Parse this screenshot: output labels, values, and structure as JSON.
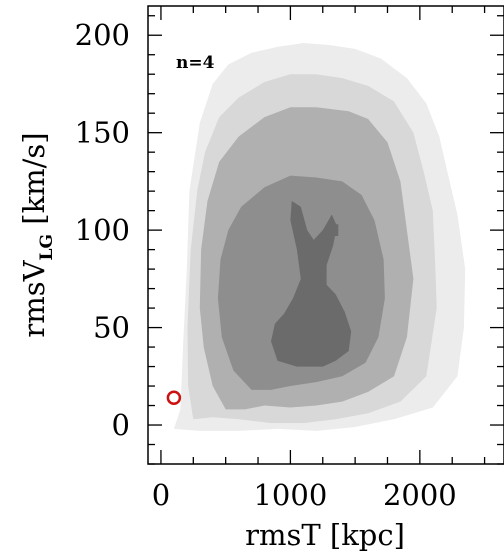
{
  "chart_data": {
    "type": "heatmap",
    "annotation": "n=4",
    "xlabel": "rmsT [kpc]",
    "ylabel": {
      "main": "rmsV",
      "subscript": "LG",
      "unit": " [km/s]"
    },
    "xlim": [
      -100,
      2650
    ],
    "ylim": [
      -20,
      215
    ],
    "xticks": [
      0,
      1000,
      2000
    ],
    "yticks": [
      0,
      50,
      100,
      150,
      200
    ],
    "x_minor_step": 250,
    "y_minor_step": 10,
    "levels": [
      {
        "name": "outer",
        "color": "#ececec"
      },
      {
        "name": "level-2",
        "color": "#d8d8d8"
      },
      {
        "name": "level-3",
        "color": "#b0b0b0"
      },
      {
        "name": "level-4",
        "color": "#8e8e8e"
      },
      {
        "name": "core",
        "color": "#6b6b6b"
      }
    ],
    "contours": [
      {
        "level": 0,
        "points": [
          [
            100,
            -2
          ],
          [
            150,
            8
          ],
          [
            170,
            40
          ],
          [
            200,
            80
          ],
          [
            220,
            120
          ],
          [
            300,
            155
          ],
          [
            400,
            175
          ],
          [
            520,
            185
          ],
          [
            700,
            191
          ],
          [
            900,
            194
          ],
          [
            1100,
            196
          ],
          [
            1300,
            195
          ],
          [
            1500,
            193
          ],
          [
            1700,
            188
          ],
          [
            1900,
            178
          ],
          [
            2050,
            165
          ],
          [
            2150,
            148
          ],
          [
            2220,
            128
          ],
          [
            2290,
            108
          ],
          [
            2350,
            80
          ],
          [
            2340,
            50
          ],
          [
            2290,
            25
          ],
          [
            2100,
            9
          ],
          [
            1800,
            3
          ],
          [
            1500,
            -1
          ],
          [
            1200,
            -3
          ],
          [
            900,
            -2
          ],
          [
            600,
            -3
          ],
          [
            300,
            -3
          ]
        ]
      },
      {
        "level": 1,
        "points": [
          [
            250,
            3
          ],
          [
            210,
            20
          ],
          [
            205,
            50
          ],
          [
            230,
            90
          ],
          [
            280,
            120
          ],
          [
            340,
            140
          ],
          [
            450,
            158
          ],
          [
            600,
            168
          ],
          [
            800,
            176
          ],
          [
            1000,
            180
          ],
          [
            1200,
            180
          ],
          [
            1400,
            178
          ],
          [
            1600,
            174
          ],
          [
            1800,
            166
          ],
          [
            1950,
            150
          ],
          [
            2030,
            130
          ],
          [
            2100,
            110
          ],
          [
            2120,
            80
          ],
          [
            2130,
            60
          ],
          [
            2050,
            25
          ],
          [
            1850,
            12
          ],
          [
            1600,
            6
          ],
          [
            1350,
            3
          ],
          [
            1100,
            1
          ],
          [
            850,
            1
          ],
          [
            600,
            3
          ],
          [
            400,
            4
          ]
        ]
      },
      {
        "level": 2,
        "points": [
          [
            500,
            8
          ],
          [
            400,
            20
          ],
          [
            330,
            40
          ],
          [
            300,
            60
          ],
          [
            310,
            90
          ],
          [
            360,
            115
          ],
          [
            450,
            135
          ],
          [
            600,
            148
          ],
          [
            800,
            158
          ],
          [
            1000,
            163
          ],
          [
            1200,
            163
          ],
          [
            1450,
            161
          ],
          [
            1600,
            157
          ],
          [
            1750,
            145
          ],
          [
            1850,
            125
          ],
          [
            1900,
            100
          ],
          [
            1950,
            75
          ],
          [
            1900,
            45
          ],
          [
            1800,
            25
          ],
          [
            1600,
            17
          ],
          [
            1400,
            12
          ],
          [
            1200,
            10
          ],
          [
            1000,
            9
          ],
          [
            800,
            10
          ],
          [
            650,
            8
          ]
        ]
      },
      {
        "level": 3,
        "points": [
          [
            700,
            18
          ],
          [
            560,
            28
          ],
          [
            470,
            45
          ],
          [
            440,
            65
          ],
          [
            460,
            85
          ],
          [
            520,
            100
          ],
          [
            620,
            112
          ],
          [
            800,
            122
          ],
          [
            1000,
            128
          ],
          [
            1200,
            127
          ],
          [
            1400,
            125
          ],
          [
            1550,
            118
          ],
          [
            1650,
            105
          ],
          [
            1720,
            85
          ],
          [
            1730,
            65
          ],
          [
            1680,
            45
          ],
          [
            1580,
            32
          ],
          [
            1400,
            25
          ],
          [
            1200,
            22
          ],
          [
            1000,
            20
          ],
          [
            850,
            18
          ]
        ]
      },
      {
        "level": 4,
        "points": [
          [
            900,
            33
          ],
          [
            850,
            43
          ],
          [
            880,
            52
          ],
          [
            950,
            57
          ],
          [
            1020,
            65
          ],
          [
            1080,
            75
          ],
          [
            1050,
            90
          ],
          [
            1000,
            105
          ],
          [
            1010,
            115
          ],
          [
            1080,
            112
          ],
          [
            1130,
            100
          ],
          [
            1180,
            95
          ],
          [
            1250,
            100
          ],
          [
            1320,
            108
          ],
          [
            1360,
            102
          ],
          [
            1330,
            92
          ],
          [
            1280,
            82
          ],
          [
            1280,
            72
          ],
          [
            1350,
            67
          ],
          [
            1420,
            58
          ],
          [
            1470,
            48
          ],
          [
            1450,
            38
          ],
          [
            1350,
            33
          ],
          [
            1250,
            30
          ],
          [
            1150,
            30
          ],
          [
            1050,
            30
          ]
        ]
      },
      {
        "level": 4,
        "points": [
          [
            1330,
            103
          ],
          [
            1370,
            103
          ],
          [
            1370,
            97
          ],
          [
            1330,
            97
          ]
        ]
      }
    ],
    "marker": {
      "x": 100,
      "y": 14,
      "color": "#cc1111"
    }
  }
}
